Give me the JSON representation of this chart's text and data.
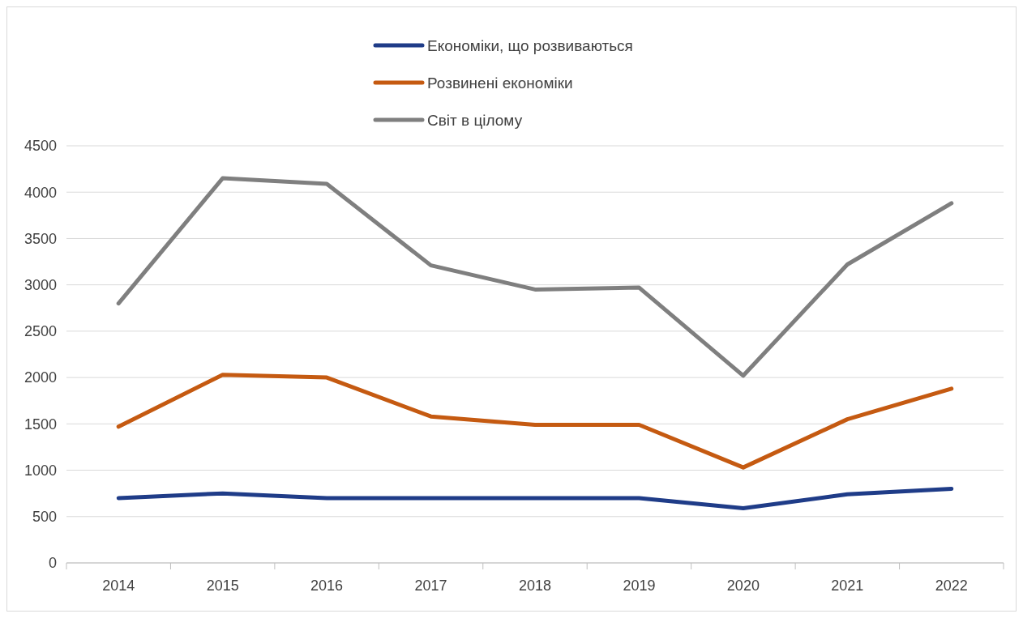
{
  "chart_data": {
    "type": "line",
    "categories": [
      "2014",
      "2015",
      "2016",
      "2017",
      "2018",
      "2019",
      "2020",
      "2021",
      "2022"
    ],
    "series": [
      {
        "name": "Економіки, що розвиваються",
        "color": "#1f3c88",
        "values": [
          700,
          750,
          700,
          700,
          700,
          700,
          590,
          740,
          800
        ]
      },
      {
        "name": "Розвинені економіки",
        "color": "#c55a11",
        "values": [
          1470,
          2030,
          2000,
          1580,
          1490,
          1490,
          1030,
          1550,
          1880
        ]
      },
      {
        "name": "Світ в цілому",
        "color": "#7f7f7f",
        "values": [
          2800,
          4150,
          4090,
          3210,
          2950,
          2970,
          2020,
          3220,
          3880
        ]
      }
    ],
    "ylim": [
      0,
      4500
    ],
    "yticks": [
      0,
      500,
      1000,
      1500,
      2000,
      2500,
      3000,
      3500,
      4000,
      4500
    ],
    "grid": "y",
    "legend": "top",
    "marker": "none",
    "line_style": "solid"
  }
}
